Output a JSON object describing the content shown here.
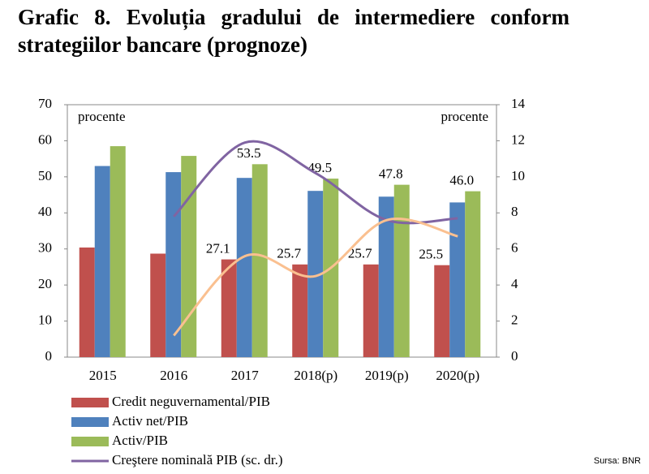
{
  "chart_data": {
    "type": "bar",
    "title": "Grafic 8.  Evoluția gradului de intermediere conform strategiilor bancare (prognoze)",
    "y_unit_left": "procente",
    "y_unit_right": "procente",
    "source": "Sursa: BNR",
    "categories": [
      "2015",
      "2016",
      "2017",
      "2018(p)",
      "2019(p)",
      "2020(p)"
    ],
    "ylim": [
      0,
      70
    ],
    "yticks": [
      0,
      10,
      20,
      30,
      40,
      50,
      60,
      70
    ],
    "y2lim": [
      0,
      14
    ],
    "y2ticks": [
      0,
      2,
      4,
      6,
      8,
      10,
      12,
      14
    ],
    "series": [
      {
        "name": "Credit neguvernamental/PIB",
        "color": "#c0504d",
        "type": "bar",
        "values": [
          30.4,
          28.7,
          27.1,
          25.7,
          25.7,
          25.5
        ],
        "value_labels": [
          null,
          null,
          "27.1",
          "25.7",
          "25.7",
          "25.5"
        ]
      },
      {
        "name": "Activ net/PIB",
        "color": "#4f81bd",
        "type": "bar",
        "values": [
          53.0,
          51.3,
          49.7,
          46.1,
          44.5,
          42.9
        ]
      },
      {
        "name": "Activ/PIB",
        "color": "#9bbb59",
        "type": "bar",
        "values": [
          58.5,
          55.8,
          53.5,
          49.5,
          47.8,
          46.0
        ],
        "value_labels": [
          null,
          null,
          "53.5",
          "49.5",
          "47.8",
          "46.0"
        ]
      },
      {
        "name": "Creştere nominală PIB (sc. dr.)",
        "color": "#8064a2",
        "type": "line",
        "axis": "y2",
        "values": [
          null,
          7.8,
          11.9,
          10.2,
          7.6,
          7.7
        ]
      },
      {
        "color": "#fac090",
        "type": "line",
        "axis": "y2",
        "values": [
          null,
          1.2,
          5.6,
          4.5,
          7.6,
          6.7
        ]
      }
    ]
  }
}
